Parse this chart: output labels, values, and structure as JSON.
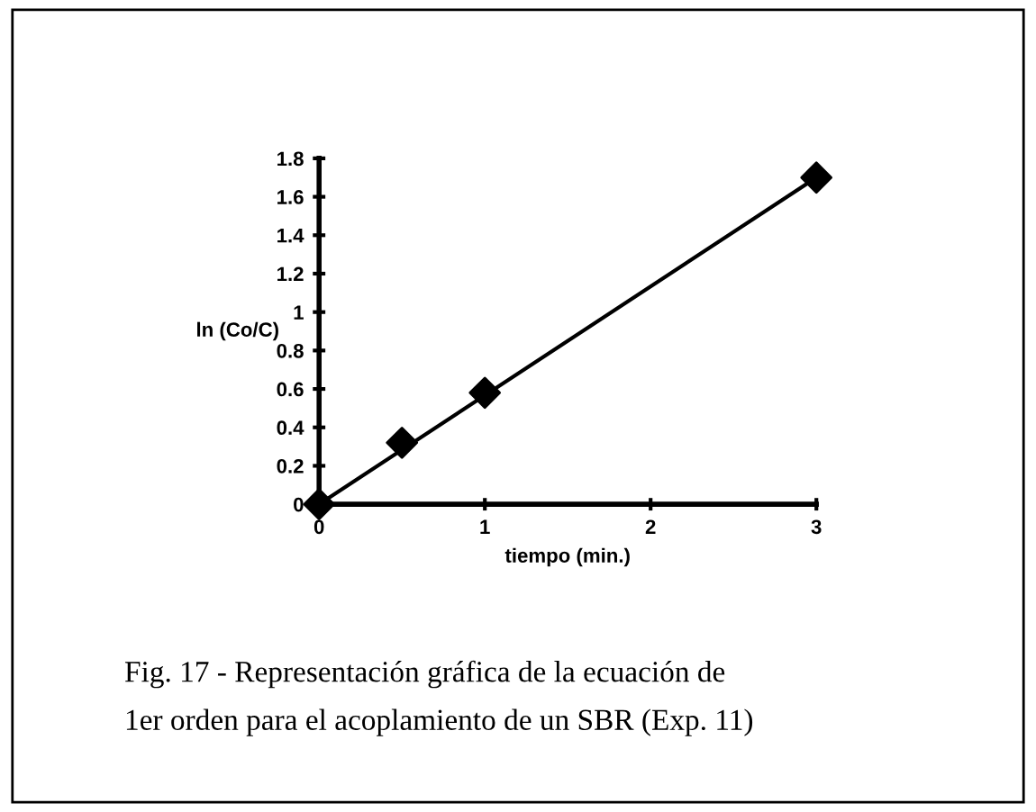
{
  "chart_data": {
    "type": "scatter",
    "xlabel": "tiempo (min.)",
    "ylabel": "ln (Co/C)",
    "series": [
      {
        "color": "#000000",
        "marker": "diamond",
        "x": [
          0,
          0.5,
          1,
          3
        ],
        "values": [
          0,
          0.32,
          0.58,
          1.7
        ]
      },
      {
        "type": "line",
        "color": "#000000",
        "marker": "none",
        "line_style": "solid",
        "x": [
          0,
          3
        ],
        "values": [
          0,
          1.7
        ]
      }
    ],
    "xlim": [
      0,
      3
    ],
    "ylim": [
      0,
      1.8
    ],
    "xticks": [
      0,
      1,
      2,
      3
    ],
    "yticks": [
      0,
      0.2,
      0.4,
      0.6,
      0.8,
      1,
      1.2,
      1.4,
      1.6,
      1.8
    ],
    "grid": false,
    "legend": false,
    "annotations": [
      "Fig. 17 - Representación gráfica de la ecuación de\n1er orden para el acoplamiento de un SBR (Exp. 11)"
    ]
  }
}
